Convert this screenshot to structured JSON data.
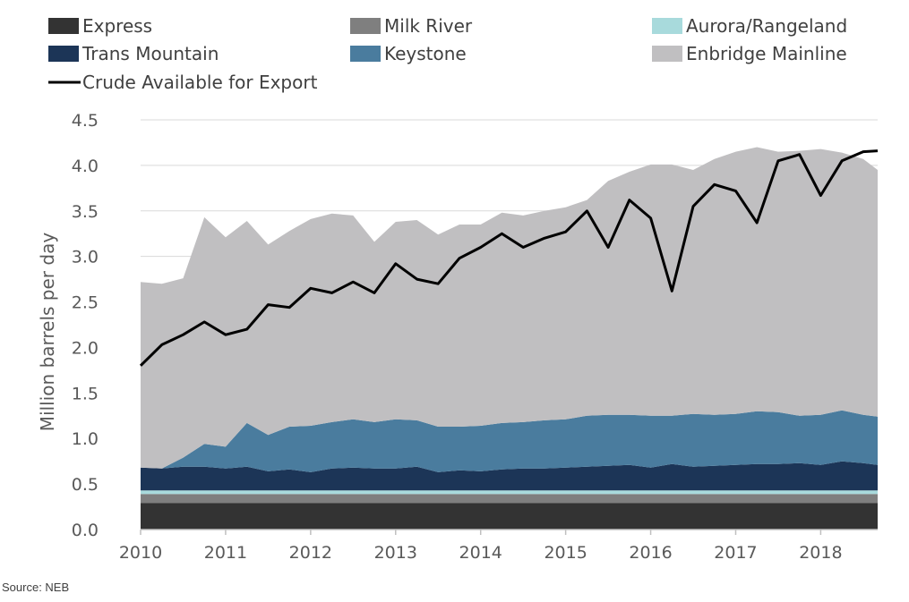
{
  "chart_data": {
    "type": "area",
    "ylabel": "Million barrels per day",
    "source": "Source: NEB",
    "ylim": [
      0,
      4.5
    ],
    "yticks": [
      "0.0",
      "0.5",
      "1.0",
      "1.5",
      "2.0",
      "2.5",
      "3.0",
      "3.5",
      "4.0",
      "4.5"
    ],
    "xlim": [
      2010,
      2018.67
    ],
    "xticks": [
      "2010",
      "2011",
      "2012",
      "2013",
      "2014",
      "2015",
      "2016",
      "2017",
      "2018"
    ],
    "grid": true,
    "legend_position": "top",
    "legend": [
      {
        "name": "Express",
        "color": "#333333",
        "kind": "area"
      },
      {
        "name": "Milk River",
        "color": "#7f7f7f",
        "kind": "area"
      },
      {
        "name": "Aurora/Rangeland",
        "color": "#a8dadc",
        "kind": "area"
      },
      {
        "name": "Trans Mountain",
        "color": "#1c3557",
        "kind": "area"
      },
      {
        "name": "Keystone",
        "color": "#4a7c9e",
        "kind": "area"
      },
      {
        "name": "Enbridge Mainline",
        "color": "#c0bfc1",
        "kind": "area"
      },
      {
        "name": "Crude Available for Export",
        "color": "#000000",
        "kind": "line"
      }
    ],
    "x_step": "quarterly",
    "x": [
      2010.0,
      2010.25,
      2010.5,
      2010.75,
      2011.0,
      2011.25,
      2011.5,
      2011.75,
      2012.0,
      2012.25,
      2012.5,
      2012.75,
      2013.0,
      2013.25,
      2013.5,
      2013.75,
      2014.0,
      2014.25,
      2014.5,
      2014.75,
      2015.0,
      2015.25,
      2015.5,
      2015.75,
      2016.0,
      2016.25,
      2016.5,
      2016.75,
      2017.0,
      2017.25,
      2017.5,
      2017.75,
      2018.0,
      2018.25,
      2018.5,
      2018.67
    ],
    "series": [
      {
        "name": "Express",
        "values": [
          0.29,
          0.29,
          0.29,
          0.29,
          0.29,
          0.29,
          0.29,
          0.29,
          0.29,
          0.29,
          0.29,
          0.29,
          0.29,
          0.29,
          0.29,
          0.29,
          0.29,
          0.29,
          0.29,
          0.29,
          0.29,
          0.29,
          0.29,
          0.29,
          0.29,
          0.29,
          0.29,
          0.29,
          0.29,
          0.29,
          0.29,
          0.29,
          0.29,
          0.29,
          0.29,
          0.29
        ]
      },
      {
        "name": "Milk River",
        "values": [
          0.1,
          0.1,
          0.1,
          0.1,
          0.1,
          0.1,
          0.1,
          0.1,
          0.1,
          0.1,
          0.1,
          0.1,
          0.1,
          0.1,
          0.1,
          0.1,
          0.1,
          0.1,
          0.1,
          0.1,
          0.1,
          0.1,
          0.1,
          0.1,
          0.1,
          0.1,
          0.1,
          0.1,
          0.1,
          0.1,
          0.1,
          0.1,
          0.1,
          0.1,
          0.1,
          0.1
        ]
      },
      {
        "name": "Aurora/Rangeland",
        "values": [
          0.04,
          0.04,
          0.04,
          0.04,
          0.04,
          0.04,
          0.04,
          0.04,
          0.04,
          0.04,
          0.04,
          0.04,
          0.04,
          0.04,
          0.04,
          0.04,
          0.04,
          0.04,
          0.04,
          0.04,
          0.04,
          0.04,
          0.04,
          0.04,
          0.04,
          0.04,
          0.04,
          0.04,
          0.04,
          0.04,
          0.04,
          0.04,
          0.04,
          0.04,
          0.04,
          0.04
        ]
      },
      {
        "name": "Trans Mountain",
        "values": [
          0.25,
          0.24,
          0.26,
          0.26,
          0.24,
          0.26,
          0.21,
          0.23,
          0.2,
          0.24,
          0.25,
          0.24,
          0.24,
          0.26,
          0.2,
          0.22,
          0.21,
          0.23,
          0.24,
          0.24,
          0.25,
          0.26,
          0.27,
          0.28,
          0.25,
          0.29,
          0.26,
          0.27,
          0.28,
          0.29,
          0.29,
          0.3,
          0.28,
          0.32,
          0.3,
          0.28
        ]
      },
      {
        "name": "Keystone",
        "values": [
          0.0,
          0.0,
          0.1,
          0.25,
          0.24,
          0.48,
          0.4,
          0.47,
          0.51,
          0.51,
          0.53,
          0.51,
          0.54,
          0.51,
          0.5,
          0.48,
          0.5,
          0.51,
          0.51,
          0.53,
          0.53,
          0.56,
          0.56,
          0.55,
          0.57,
          0.53,
          0.58,
          0.56,
          0.56,
          0.58,
          0.57,
          0.52,
          0.55,
          0.56,
          0.53,
          0.53
        ]
      },
      {
        "name": "Enbridge Mainline",
        "values": [
          2.04,
          2.03,
          1.97,
          2.49,
          2.3,
          2.22,
          2.09,
          2.15,
          2.27,
          2.29,
          2.24,
          1.98,
          2.17,
          2.2,
          2.11,
          2.22,
          2.21,
          2.31,
          2.27,
          2.3,
          2.33,
          2.37,
          2.57,
          2.67,
          2.76,
          2.76,
          2.68,
          2.81,
          2.88,
          2.9,
          2.86,
          2.91,
          2.92,
          2.83,
          2.81,
          2.71
        ]
      },
      {
        "name": "Crude Available for Export",
        "values": [
          1.8,
          2.03,
          2.14,
          2.28,
          2.14,
          2.2,
          2.47,
          2.44,
          2.65,
          2.6,
          2.72,
          2.6,
          2.92,
          2.75,
          2.7,
          2.98,
          3.1,
          3.25,
          3.1,
          3.2,
          3.27,
          3.5,
          3.1,
          3.62,
          3.42,
          2.62,
          3.55,
          3.79,
          3.72,
          3.37,
          4.05,
          4.12,
          3.67,
          4.05,
          4.15,
          4.16
        ]
      }
    ]
  }
}
